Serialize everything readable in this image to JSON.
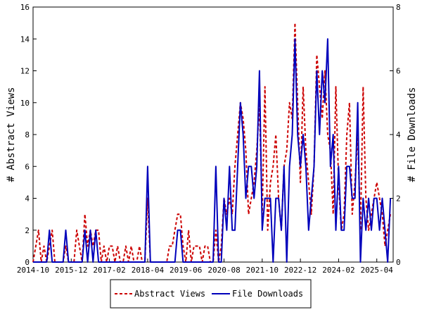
{
  "chart_data": {
    "type": "line",
    "ylabel_left": "# Abstract Views",
    "ylabel_right": "# File Downloads",
    "ylim_left": [
      0,
      16
    ],
    "ylim_right": [
      0,
      8
    ],
    "yticks_left": [
      0,
      2,
      4,
      6,
      8,
      10,
      12,
      14,
      16
    ],
    "yticks_right": [
      0,
      2,
      4,
      6,
      8
    ],
    "x_range": [
      "2014-10",
      "2025-10"
    ],
    "x_ticks": [
      "2014-10",
      "2015-12",
      "2017-02",
      "2018-04",
      "2019-06",
      "2020-08",
      "2021-10",
      "2022-12",
      "2024-02",
      "2025-04"
    ],
    "legend_position": "bottom-center",
    "series": [
      {
        "name": "Abstract Views",
        "axis": "left",
        "color": "#cc0000",
        "style": "dashed",
        "points": [
          [
            "2014-10",
            0
          ],
          [
            "2014-11",
            1
          ],
          [
            "2014-12",
            2
          ],
          [
            "2015-01",
            0
          ],
          [
            "2015-02",
            1
          ],
          [
            "2015-03",
            0
          ],
          [
            "2015-04",
            1
          ],
          [
            "2015-05",
            2
          ],
          [
            "2015-06",
            0
          ],
          [
            "2015-07",
            0
          ],
          [
            "2015-08",
            0
          ],
          [
            "2015-09",
            0
          ],
          [
            "2015-10",
            1
          ],
          [
            "2015-11",
            0
          ],
          [
            "2015-12",
            0
          ],
          [
            "2016-01",
            0
          ],
          [
            "2016-02",
            2
          ],
          [
            "2016-03",
            1
          ],
          [
            "2016-04",
            0
          ],
          [
            "2016-05",
            3
          ],
          [
            "2016-06",
            1
          ],
          [
            "2016-07",
            2
          ],
          [
            "2016-08",
            1
          ],
          [
            "2016-09",
            2
          ],
          [
            "2016-10",
            2
          ],
          [
            "2016-11",
            0
          ],
          [
            "2016-12",
            1
          ],
          [
            "2017-01",
            0
          ],
          [
            "2017-02",
            1
          ],
          [
            "2017-03",
            1
          ],
          [
            "2017-04",
            0
          ],
          [
            "2017-05",
            1
          ],
          [
            "2017-06",
            0
          ],
          [
            "2017-07",
            0
          ],
          [
            "2017-08",
            1
          ],
          [
            "2017-09",
            0
          ],
          [
            "2017-10",
            1
          ],
          [
            "2017-11",
            0
          ],
          [
            "2017-12",
            0
          ],
          [
            "2018-01",
            1
          ],
          [
            "2018-02",
            0
          ],
          [
            "2018-03",
            0
          ],
          [
            "2018-04",
            4
          ],
          [
            "2018-05",
            0
          ],
          [
            "2018-06",
            0
          ],
          [
            "2018-07",
            0
          ],
          [
            "2018-08",
            0
          ],
          [
            "2018-09",
            0
          ],
          [
            "2018-10",
            0
          ],
          [
            "2018-11",
            0
          ],
          [
            "2018-12",
            1
          ],
          [
            "2019-01",
            1
          ],
          [
            "2019-02",
            2
          ],
          [
            "2019-03",
            3
          ],
          [
            "2019-04",
            3
          ],
          [
            "2019-05",
            1
          ],
          [
            "2019-06",
            0
          ],
          [
            "2019-07",
            2
          ],
          [
            "2019-08",
            0
          ],
          [
            "2019-09",
            1
          ],
          [
            "2019-10",
            1
          ],
          [
            "2019-11",
            1
          ],
          [
            "2019-12",
            0
          ],
          [
            "2020-01",
            1
          ],
          [
            "2020-02",
            1
          ],
          [
            "2020-03",
            0
          ],
          [
            "2020-04",
            0
          ],
          [
            "2020-05",
            2
          ],
          [
            "2020-06",
            0
          ],
          [
            "2020-07",
            1
          ],
          [
            "2020-08",
            4
          ],
          [
            "2020-09",
            3
          ],
          [
            "2020-10",
            4
          ],
          [
            "2020-11",
            3
          ],
          [
            "2020-12",
            6
          ],
          [
            "2021-01",
            8
          ],
          [
            "2021-02",
            10
          ],
          [
            "2021-03",
            9
          ],
          [
            "2021-04",
            7
          ],
          [
            "2021-05",
            3
          ],
          [
            "2021-06",
            4
          ],
          [
            "2021-07",
            5
          ],
          [
            "2021-08",
            7
          ],
          [
            "2021-09",
            10
          ],
          [
            "2021-10",
            3
          ],
          [
            "2021-11",
            11
          ],
          [
            "2021-12",
            2
          ],
          [
            "2022-01",
            5
          ],
          [
            "2022-02",
            6
          ],
          [
            "2022-03",
            8
          ],
          [
            "2022-04",
            4
          ],
          [
            "2022-05",
            2
          ],
          [
            "2022-06",
            6
          ],
          [
            "2022-07",
            7
          ],
          [
            "2022-08",
            10
          ],
          [
            "2022-09",
            9
          ],
          [
            "2022-10",
            15
          ],
          [
            "2022-11",
            10
          ],
          [
            "2022-12",
            5
          ],
          [
            "2023-01",
            11
          ],
          [
            "2023-02",
            7
          ],
          [
            "2023-03",
            5
          ],
          [
            "2023-04",
            3
          ],
          [
            "2023-05",
            6
          ],
          [
            "2023-06",
            13
          ],
          [
            "2023-07",
            11
          ],
          [
            "2023-08",
            9
          ],
          [
            "2023-09",
            12
          ],
          [
            "2023-10",
            8
          ],
          [
            "2023-11",
            7
          ],
          [
            "2023-12",
            3
          ],
          [
            "2024-01",
            11
          ],
          [
            "2024-02",
            5
          ],
          [
            "2024-03",
            2
          ],
          [
            "2024-04",
            3
          ],
          [
            "2024-05",
            8
          ],
          [
            "2024-06",
            10
          ],
          [
            "2024-07",
            3
          ],
          [
            "2024-08",
            5
          ],
          [
            "2024-09",
            8
          ],
          [
            "2024-10",
            2
          ],
          [
            "2024-11",
            11
          ],
          [
            "2024-12",
            4
          ],
          [
            "2025-01",
            2
          ],
          [
            "2025-02",
            3
          ],
          [
            "2025-03",
            4
          ],
          [
            "2025-04",
            5
          ],
          [
            "2025-05",
            4
          ],
          [
            "2025-06",
            3
          ],
          [
            "2025-07",
            1
          ],
          [
            "2025-08",
            2
          ],
          [
            "2025-09",
            3
          ]
        ]
      },
      {
        "name": "File Downloads",
        "axis": "right",
        "color": "#0000bb",
        "style": "solid",
        "points": [
          [
            "2014-10",
            0
          ],
          [
            "2014-11",
            0
          ],
          [
            "2014-12",
            0
          ],
          [
            "2015-01",
            0
          ],
          [
            "2015-02",
            0
          ],
          [
            "2015-03",
            0
          ],
          [
            "2015-04",
            1
          ],
          [
            "2015-05",
            0
          ],
          [
            "2015-06",
            0
          ],
          [
            "2015-07",
            0
          ],
          [
            "2015-08",
            0
          ],
          [
            "2015-09",
            0
          ],
          [
            "2015-10",
            1
          ],
          [
            "2015-11",
            0
          ],
          [
            "2015-12",
            0
          ],
          [
            "2016-01",
            0
          ],
          [
            "2016-02",
            0
          ],
          [
            "2016-03",
            0
          ],
          [
            "2016-04",
            0
          ],
          [
            "2016-05",
            1
          ],
          [
            "2016-06",
            0
          ],
          [
            "2016-07",
            1
          ],
          [
            "2016-08",
            0
          ],
          [
            "2016-09",
            1
          ],
          [
            "2016-10",
            0
          ],
          [
            "2016-11",
            0
          ],
          [
            "2016-12",
            0
          ],
          [
            "2017-01",
            0
          ],
          [
            "2017-02",
            0
          ],
          [
            "2017-03",
            0
          ],
          [
            "2017-04",
            0
          ],
          [
            "2017-05",
            0
          ],
          [
            "2017-06",
            0
          ],
          [
            "2017-07",
            0
          ],
          [
            "2017-08",
            0
          ],
          [
            "2017-09",
            0
          ],
          [
            "2017-10",
            0
          ],
          [
            "2017-11",
            0
          ],
          [
            "2017-12",
            0
          ],
          [
            "2018-01",
            0
          ],
          [
            "2018-02",
            0
          ],
          [
            "2018-03",
            0
          ],
          [
            "2018-04",
            3
          ],
          [
            "2018-05",
            0
          ],
          [
            "2018-06",
            0
          ],
          [
            "2018-07",
            0
          ],
          [
            "2018-08",
            0
          ],
          [
            "2018-09",
            0
          ],
          [
            "2018-10",
            0
          ],
          [
            "2018-11",
            0
          ],
          [
            "2018-12",
            0
          ],
          [
            "2019-01",
            0
          ],
          [
            "2019-02",
            0
          ],
          [
            "2019-03",
            1
          ],
          [
            "2019-04",
            1
          ],
          [
            "2019-05",
            0
          ],
          [
            "2019-06",
            0
          ],
          [
            "2019-07",
            0
          ],
          [
            "2019-08",
            0
          ],
          [
            "2019-09",
            0
          ],
          [
            "2019-10",
            0
          ],
          [
            "2019-11",
            0
          ],
          [
            "2019-12",
            0
          ],
          [
            "2020-01",
            0
          ],
          [
            "2020-02",
            0
          ],
          [
            "2020-03",
            0
          ],
          [
            "2020-04",
            0
          ],
          [
            "2020-05",
            3
          ],
          [
            "2020-06",
            0
          ],
          [
            "2020-07",
            0
          ],
          [
            "2020-08",
            2
          ],
          [
            "2020-09",
            1
          ],
          [
            "2020-10",
            3
          ],
          [
            "2020-11",
            1
          ],
          [
            "2020-12",
            1
          ],
          [
            "2021-01",
            3
          ],
          [
            "2021-02",
            5
          ],
          [
            "2021-03",
            4
          ],
          [
            "2021-04",
            2
          ],
          [
            "2021-05",
            3
          ],
          [
            "2021-06",
            3
          ],
          [
            "2021-07",
            2
          ],
          [
            "2021-08",
            3
          ],
          [
            "2021-09",
            6
          ],
          [
            "2021-10",
            1
          ],
          [
            "2021-11",
            2
          ],
          [
            "2021-12",
            2
          ],
          [
            "2022-01",
            2
          ],
          [
            "2022-02",
            0
          ],
          [
            "2022-03",
            2
          ],
          [
            "2022-04",
            2
          ],
          [
            "2022-05",
            1
          ],
          [
            "2022-06",
            3
          ],
          [
            "2022-07",
            0
          ],
          [
            "2022-08",
            3
          ],
          [
            "2022-09",
            4
          ],
          [
            "2022-10",
            7
          ],
          [
            "2022-11",
            4
          ],
          [
            "2022-12",
            3
          ],
          [
            "2023-01",
            4
          ],
          [
            "2023-02",
            3
          ],
          [
            "2023-03",
            1
          ],
          [
            "2023-04",
            2
          ],
          [
            "2023-05",
            3
          ],
          [
            "2023-06",
            6
          ],
          [
            "2023-07",
            4
          ],
          [
            "2023-08",
            6
          ],
          [
            "2023-09",
            5
          ],
          [
            "2023-10",
            7
          ],
          [
            "2023-11",
            3
          ],
          [
            "2023-12",
            4
          ],
          [
            "2024-01",
            1
          ],
          [
            "2024-02",
            3
          ],
          [
            "2024-03",
            1
          ],
          [
            "2024-04",
            1
          ],
          [
            "2024-05",
            3
          ],
          [
            "2024-06",
            3
          ],
          [
            "2024-07",
            2
          ],
          [
            "2024-08",
            2
          ],
          [
            "2024-09",
            5
          ],
          [
            "2024-10",
            0
          ],
          [
            "2024-11",
            2
          ],
          [
            "2024-12",
            1
          ],
          [
            "2025-01",
            2
          ],
          [
            "2025-02",
            1
          ],
          [
            "2025-03",
            2
          ],
          [
            "2025-04",
            2
          ],
          [
            "2025-05",
            1
          ],
          [
            "2025-06",
            2
          ],
          [
            "2025-07",
            1
          ],
          [
            "2025-08",
            0
          ],
          [
            "2025-09",
            2
          ]
        ]
      }
    ]
  }
}
